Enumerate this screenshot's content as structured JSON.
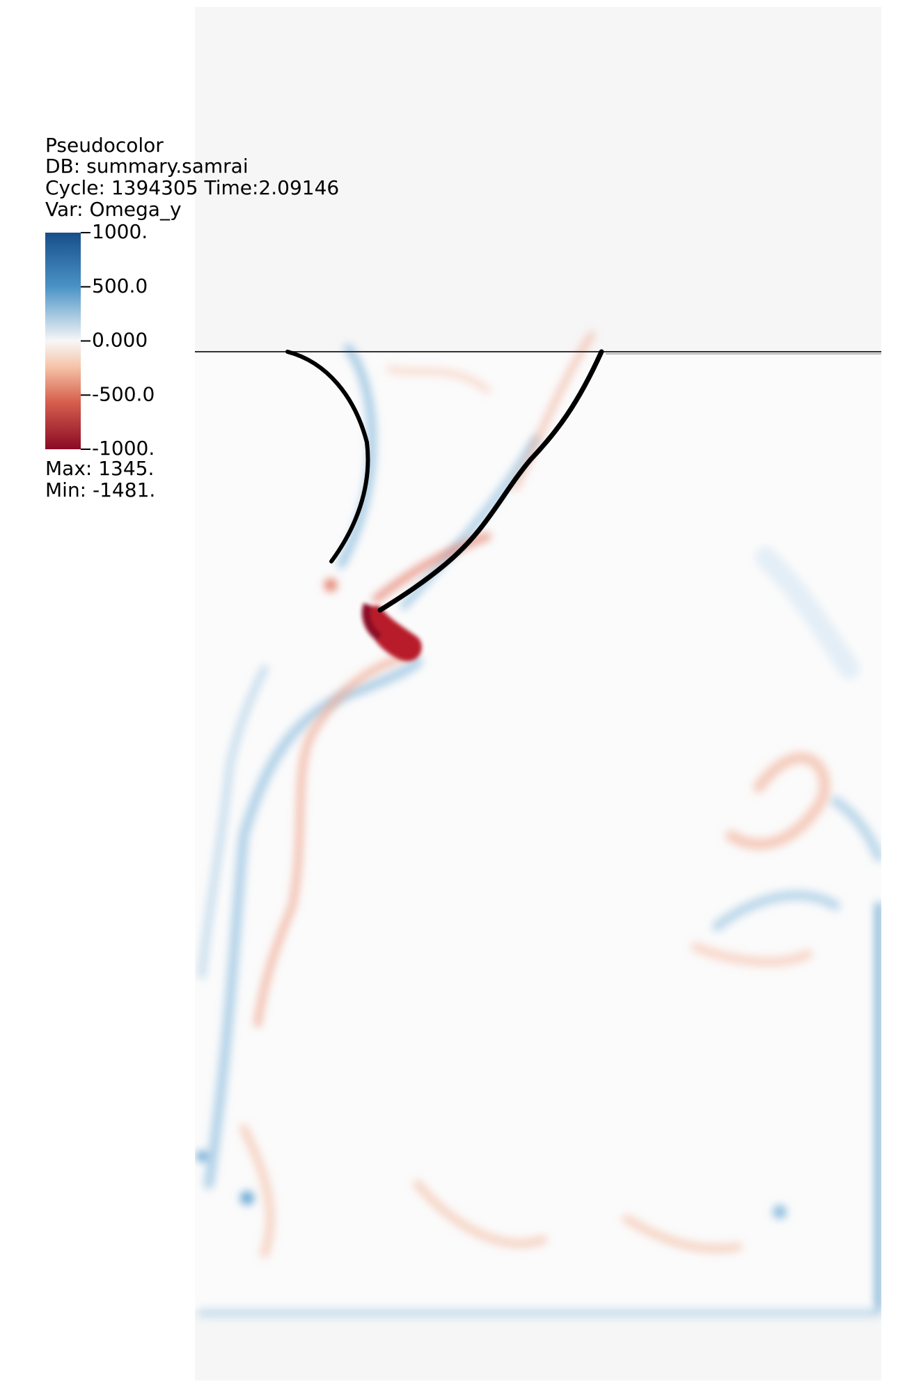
{
  "legend": {
    "plot_type": "Pseudocolor",
    "db": "DB: summary.samrai",
    "cycle": "Cycle: 1394305  Time:2.09146",
    "var": "Var: Omega_y",
    "ticks": [
      {
        "value": 1000,
        "label": "1000."
      },
      {
        "value": 500,
        "label": "500.0"
      },
      {
        "value": 0,
        "label": "0.000"
      },
      {
        "value": -500,
        "label": "-500.0"
      },
      {
        "value": -1000,
        "label": "-1000."
      }
    ],
    "max": "Max:  1345.",
    "min": "Min: -1481."
  }
}
